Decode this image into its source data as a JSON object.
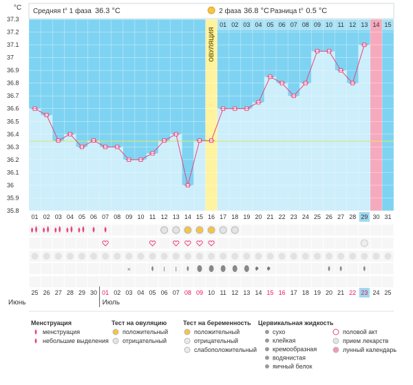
{
  "header": {
    "phase1_label": "Средняя t° 1 фаза",
    "phase1_value": "36.3 °C",
    "phase2_label": "2 фаза",
    "phase2_value": "36.8 °C",
    "diff_label": "Разница t°",
    "diff_value": "0.5 °C",
    "unit": "°C",
    "ovulation_label": "ОВУЛЯЦИЯ"
  },
  "chart_data": {
    "type": "line",
    "ylim": [
      35.8,
      37.3
    ],
    "y_ticks": [
      "37.3",
      "37.2",
      "37.1",
      "37",
      "36.9",
      "36.8",
      "36.7",
      "36.6",
      "36.5",
      "36.4",
      "36.3",
      "36.2",
      "36.1",
      "36",
      "35.9",
      "35.8"
    ],
    "cycle_days": [
      "01",
      "02",
      "03",
      "04",
      "05",
      "06",
      "07",
      "08",
      "09",
      "10",
      "11",
      "12",
      "13",
      "14",
      "15",
      "16",
      "17",
      "18",
      "19",
      "20",
      "21",
      "22",
      "23",
      "24",
      "25",
      "26",
      "27",
      "28",
      "29",
      "30",
      "31"
    ],
    "phase2_days": [
      "01",
      "02",
      "03",
      "04",
      "05",
      "06",
      "07",
      "08",
      "09",
      "10",
      "11",
      "12",
      "13",
      "14",
      "15"
    ],
    "temperatures": [
      36.6,
      36.55,
      36.35,
      36.4,
      36.3,
      36.35,
      36.3,
      36.3,
      36.2,
      36.2,
      36.25,
      36.35,
      36.4,
      36.0,
      36.35,
      36.35,
      36.6,
      36.6,
      36.6,
      36.65,
      36.85,
      36.8,
      36.7,
      36.8,
      37.05,
      37.05,
      36.9,
      36.8,
      37.1
    ],
    "coverline": 36.35,
    "ovulation_day": 16,
    "predicted_day": 30,
    "today_day": 29
  },
  "calendar": {
    "dates": [
      "25",
      "26",
      "27",
      "28",
      "29",
      "30",
      "01",
      "02",
      "03",
      "04",
      "05",
      "06",
      "07",
      "08",
      "09",
      "10",
      "11",
      "12",
      "13",
      "14",
      "15",
      "16",
      "17",
      "18",
      "19",
      "20",
      "21",
      "22",
      "23",
      "24",
      "25"
    ],
    "month_june": "Июнь",
    "month_july": "Июль",
    "red_dates": [
      7,
      14,
      15,
      21,
      22,
      28,
      29
    ]
  },
  "colors": {
    "temp_line": "#e8447a",
    "point_fill": "#ffffff",
    "phase_bg": "#7fd3f2",
    "bar_fill": "#cdeefb",
    "ovulation": "#fff3a0",
    "predicted": "#f7a9bd",
    "today": "#9ed9f0",
    "coverline": "#d7ea6a",
    "red_text": "#e8145a"
  },
  "legend": {
    "menstruation": {
      "title": "Менструация",
      "items": [
        "менструация",
        "небольшие выделения"
      ]
    },
    "ovulation_test": {
      "title": "Тест на овуляцию",
      "items": [
        "положительный",
        "отрицательный"
      ]
    },
    "pregnancy_test": {
      "title": "Тест на беременность",
      "items": [
        "положительный",
        "отрицательный",
        "слабоположительный"
      ]
    },
    "cervical_fluid": {
      "title": "Цервикальная жидкость",
      "items": [
        "сухо",
        "клейкая",
        "кремообразная",
        "водянистая",
        "яичный белок"
      ]
    },
    "other": {
      "items": [
        "половой акт",
        "прием лекарств",
        "лунный календарь"
      ]
    }
  },
  "rows": {
    "menstruation": [
      "heavy",
      "heavy",
      "heavy",
      "heavy",
      "heavy",
      "light",
      "light"
    ],
    "ovulation_test": {
      "12": "neg",
      "13": "neg",
      "14": "pos",
      "15": "pos",
      "16": "pos",
      "17": "neg",
      "18": "neg"
    },
    "heart_days": [
      7,
      11,
      13,
      14,
      15,
      16
    ],
    "pill_day": 29,
    "fluid": {
      "11": "drop",
      "12": "sticky",
      "13": "sticky",
      "14": "drop",
      "15": "egg",
      "16": "egg",
      "17": "egg",
      "18": "egg",
      "19": "egg",
      "20": "cream",
      "21": "cream",
      "26": "drop",
      "27": "drop",
      "29": "drop"
    }
  }
}
